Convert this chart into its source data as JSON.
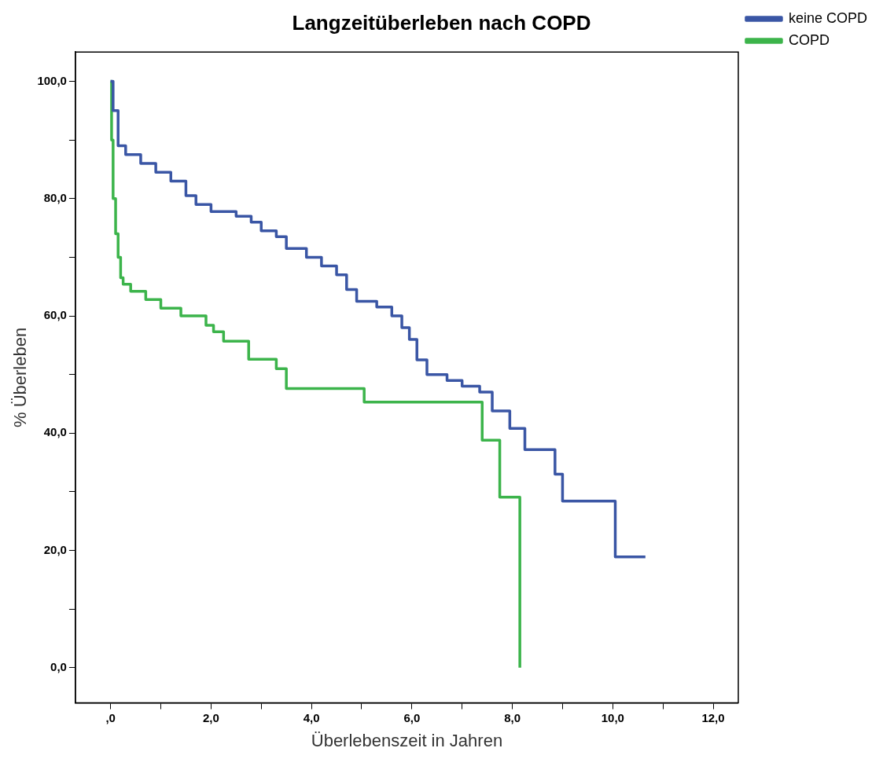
{
  "chart_data": {
    "type": "step",
    "title": "Langzeitüberleben nach COPD",
    "xlabel": "Überlebenszeit in Jahren",
    "ylabel": "% Überleben",
    "xlim": [
      -0.7,
      12.5
    ],
    "xticks": [
      {
        "value": 0,
        "label": ",0"
      },
      {
        "value": 1,
        "label": null
      },
      {
        "value": 2,
        "label": "2,0"
      },
      {
        "value": 3,
        "label": null
      },
      {
        "value": 4,
        "label": "4,0"
      },
      {
        "value": 5,
        "label": null
      },
      {
        "value": 6,
        "label": "6,0"
      },
      {
        "value": 7,
        "label": null
      },
      {
        "value": 8,
        "label": "8,0"
      },
      {
        "value": 9,
        "label": null
      },
      {
        "value": 10,
        "label": "10,0"
      },
      {
        "value": 11,
        "label": null
      },
      {
        "value": 12,
        "label": "12,0"
      }
    ],
    "ylim": [
      -6,
      105
    ],
    "yticks": [
      {
        "value": 0,
        "label": "0,0"
      },
      {
        "value": 10,
        "label": null
      },
      {
        "value": 20,
        "label": "20,0"
      },
      {
        "value": 30,
        "label": null
      },
      {
        "value": 40,
        "label": "40,0"
      },
      {
        "value": 50,
        "label": null
      },
      {
        "value": 60,
        "label": "60,0"
      },
      {
        "value": 70,
        "label": null
      },
      {
        "value": 80,
        "label": "80,0"
      },
      {
        "value": 90,
        "label": null
      },
      {
        "value": 100,
        "label": "100,0"
      }
    ],
    "grid": false,
    "legend": "top right",
    "marker": "none",
    "line_style": "solid",
    "series": [
      {
        "name": "keine COPD",
        "color": "#3a56a5",
        "x": [
          0,
          0.05,
          0.15,
          0.3,
          0.6,
          0.9,
          1.2,
          1.5,
          1.7,
          2.0,
          2.5,
          2.8,
          3.0,
          3.3,
          3.5,
          3.9,
          4.2,
          4.5,
          4.7,
          4.9,
          5.3,
          5.6,
          5.8,
          5.95,
          6.1,
          6.3,
          6.7,
          7.0,
          7.35,
          7.6,
          7.95,
          8.25,
          8.85,
          9.0,
          10.05,
          10.65
        ],
        "values": [
          100,
          95,
          89,
          87.5,
          86,
          84.5,
          83,
          80.5,
          79,
          77.8,
          77,
          76,
          74.5,
          73.5,
          71.5,
          70,
          68.5,
          67,
          64.5,
          62.5,
          61.5,
          60,
          58,
          56,
          52.5,
          50,
          49,
          48,
          47,
          43.8,
          40.8,
          37.2,
          33,
          28.4,
          18.9,
          18.9
        ]
      },
      {
        "name": "COPD",
        "color": "#3cb44b",
        "x": [
          0,
          0.02,
          0.05,
          0.1,
          0.15,
          0.2,
          0.25,
          0.4,
          0.7,
          1.0,
          1.4,
          1.9,
          2.05,
          2.25,
          2.75,
          3.3,
          3.5,
          5.05,
          7.4,
          7.75,
          8.15
        ],
        "values": [
          100,
          90,
          80,
          74,
          70,
          66.5,
          65.4,
          64.2,
          62.8,
          61.3,
          60,
          58.4,
          57.3,
          55.7,
          52.6,
          51,
          47.6,
          45.3,
          38.8,
          29.1,
          0
        ]
      }
    ]
  }
}
